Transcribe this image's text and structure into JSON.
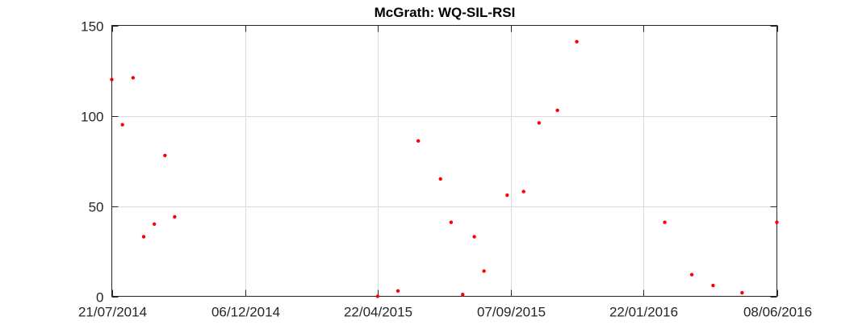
{
  "chart_data": {
    "type": "scatter",
    "title": "McGrath: WQ-SIL-RSI",
    "xlabel": "",
    "ylabel": "",
    "xlim": [
      "2014-07-21",
      "2016-06-08"
    ],
    "ylim": [
      0,
      150
    ],
    "grid": true,
    "marker_color": "#ff0000",
    "x_ticks": [
      {
        "date": "2014-07-21",
        "label": "21/07/2014"
      },
      {
        "date": "2014-12-06",
        "label": "06/12/2014"
      },
      {
        "date": "2015-04-22",
        "label": "22/04/2015"
      },
      {
        "date": "2015-09-07",
        "label": "07/09/2015"
      },
      {
        "date": "2016-01-22",
        "label": "22/01/2016"
      },
      {
        "date": "2016-06-08",
        "label": "08/06/2016"
      }
    ],
    "y_ticks": [
      {
        "value": 0,
        "label": "0"
      },
      {
        "value": 50,
        "label": "50"
      },
      {
        "value": 100,
        "label": "100"
      },
      {
        "value": 150,
        "label": "150"
      }
    ],
    "series": [
      {
        "points": [
          {
            "x": "2014-07-21",
            "y": 120
          },
          {
            "x": "2014-08-01",
            "y": 95
          },
          {
            "x": "2014-08-12",
            "y": 121
          },
          {
            "x": "2014-08-23",
            "y": 33
          },
          {
            "x": "2014-09-03",
            "y": 40
          },
          {
            "x": "2014-09-14",
            "y": 78
          },
          {
            "x": "2014-09-24",
            "y": 44
          },
          {
            "x": "2015-04-22",
            "y": 0
          },
          {
            "x": "2015-05-13",
            "y": 3
          },
          {
            "x": "2015-06-03",
            "y": 86
          },
          {
            "x": "2015-06-26",
            "y": 65
          },
          {
            "x": "2015-07-07",
            "y": 41
          },
          {
            "x": "2015-07-19",
            "y": 1
          },
          {
            "x": "2015-07-31",
            "y": 33
          },
          {
            "x": "2015-08-10",
            "y": 14
          },
          {
            "x": "2015-09-03",
            "y": 56
          },
          {
            "x": "2015-09-20",
            "y": 58
          },
          {
            "x": "2015-10-06",
            "y": 96
          },
          {
            "x": "2015-10-25",
            "y": 103
          },
          {
            "x": "2015-11-14",
            "y": 141
          },
          {
            "x": "2016-02-13",
            "y": 41
          },
          {
            "x": "2016-03-12",
            "y": 12
          },
          {
            "x": "2016-04-03",
            "y": 6
          },
          {
            "x": "2016-05-03",
            "y": 2
          },
          {
            "x": "2016-06-08",
            "y": 41
          }
        ]
      }
    ]
  }
}
